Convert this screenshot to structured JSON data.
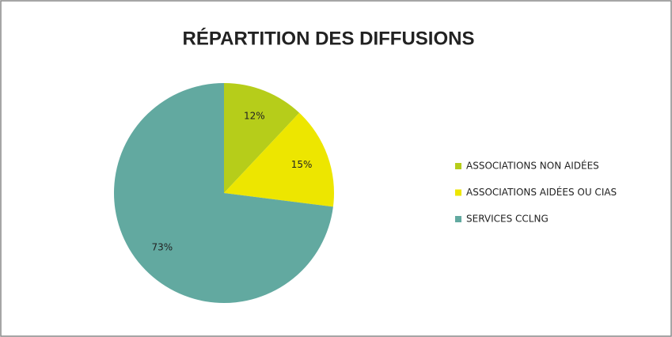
{
  "chart_data": {
    "type": "pie",
    "title": "RÉPARTITION DES DIFFUSIONS",
    "categories": [
      "ASSOCIATIONS NON AIDÉES",
      "ASSOCIATIONS AIDÉES OU CIAS",
      "SERVICES CCLNG"
    ],
    "values": [
      12,
      15,
      73
    ],
    "value_labels": [
      "12%",
      "15%",
      "73%"
    ],
    "colors": [
      "#b6cd1a",
      "#ede600",
      "#62a9a0"
    ],
    "legend": "right"
  }
}
